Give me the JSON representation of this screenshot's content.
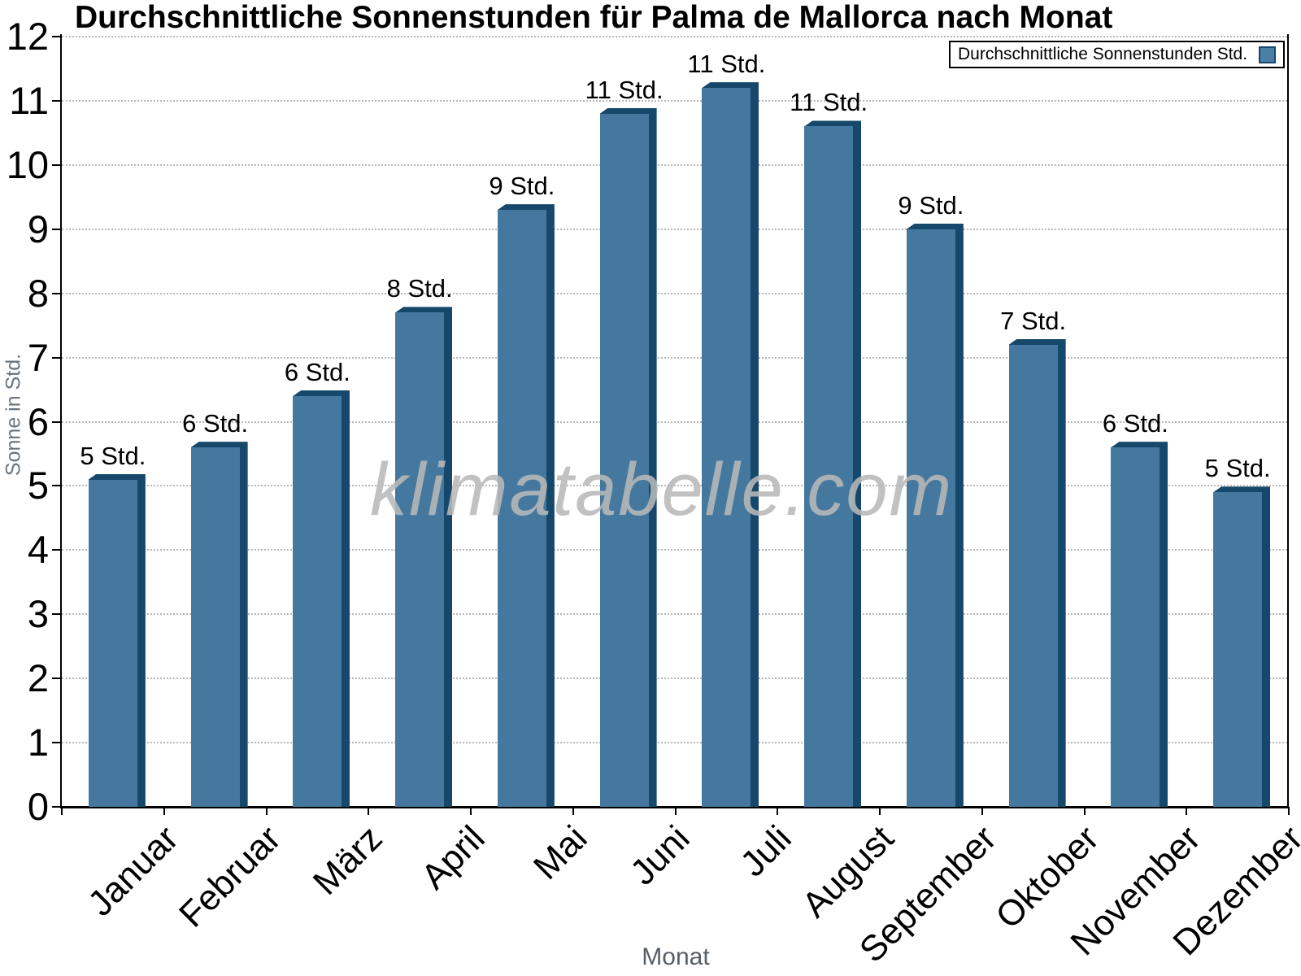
{
  "page": {
    "background": "#ffffff"
  },
  "chart_data": {
    "type": "bar",
    "title": "Durchschnittliche Sonnenstunden für Palma de Mallorca nach Monat",
    "xlabel": "Monat",
    "ylabel": "Sonne in Std.",
    "categories": [
      "Januar",
      "Februar",
      "März",
      "April",
      "Mai",
      "Juni",
      "Juli",
      "August",
      "September",
      "Oktober",
      "November",
      "Dezember"
    ],
    "series": [
      {
        "name": "Durchschnittliche Sonnenstunden Std.",
        "values": [
          5.1,
          5.6,
          6.4,
          7.7,
          9.3,
          10.8,
          11.2,
          10.6,
          9.0,
          7.2,
          5.6,
          4.9
        ]
      }
    ],
    "bar_value_labels": [
      "5 Std.",
      "6 Std.",
      "6 Std.",
      "8 Std.",
      "9 Std.",
      "11 Std.",
      "11 Std.",
      "11 Std.",
      "9 Std.",
      "7 Std.",
      "6 Std.",
      "5 Std."
    ],
    "ylim": [
      0,
      12
    ],
    "ytick_step": 1,
    "grid": "horizontal-dotted",
    "legend_position": "top-right"
  },
  "legend": {
    "label": "Durchschnittliche Sonnenstunden Std."
  },
  "watermark": {
    "text": "klimatabelle.com"
  },
  "colors": {
    "bar_face": "#45789E",
    "bar_shadow": "#16486B",
    "legend_swatch": "#4B80A6",
    "legend_swatch_border": "#16486B",
    "axis": "#000000",
    "grid": "#b8b8b8",
    "y_axis_title_gray": "#68737d",
    "x_axis_title_gray": "#565e66",
    "watermark_gray": "#b8b8b8",
    "label_text": "#000000"
  }
}
